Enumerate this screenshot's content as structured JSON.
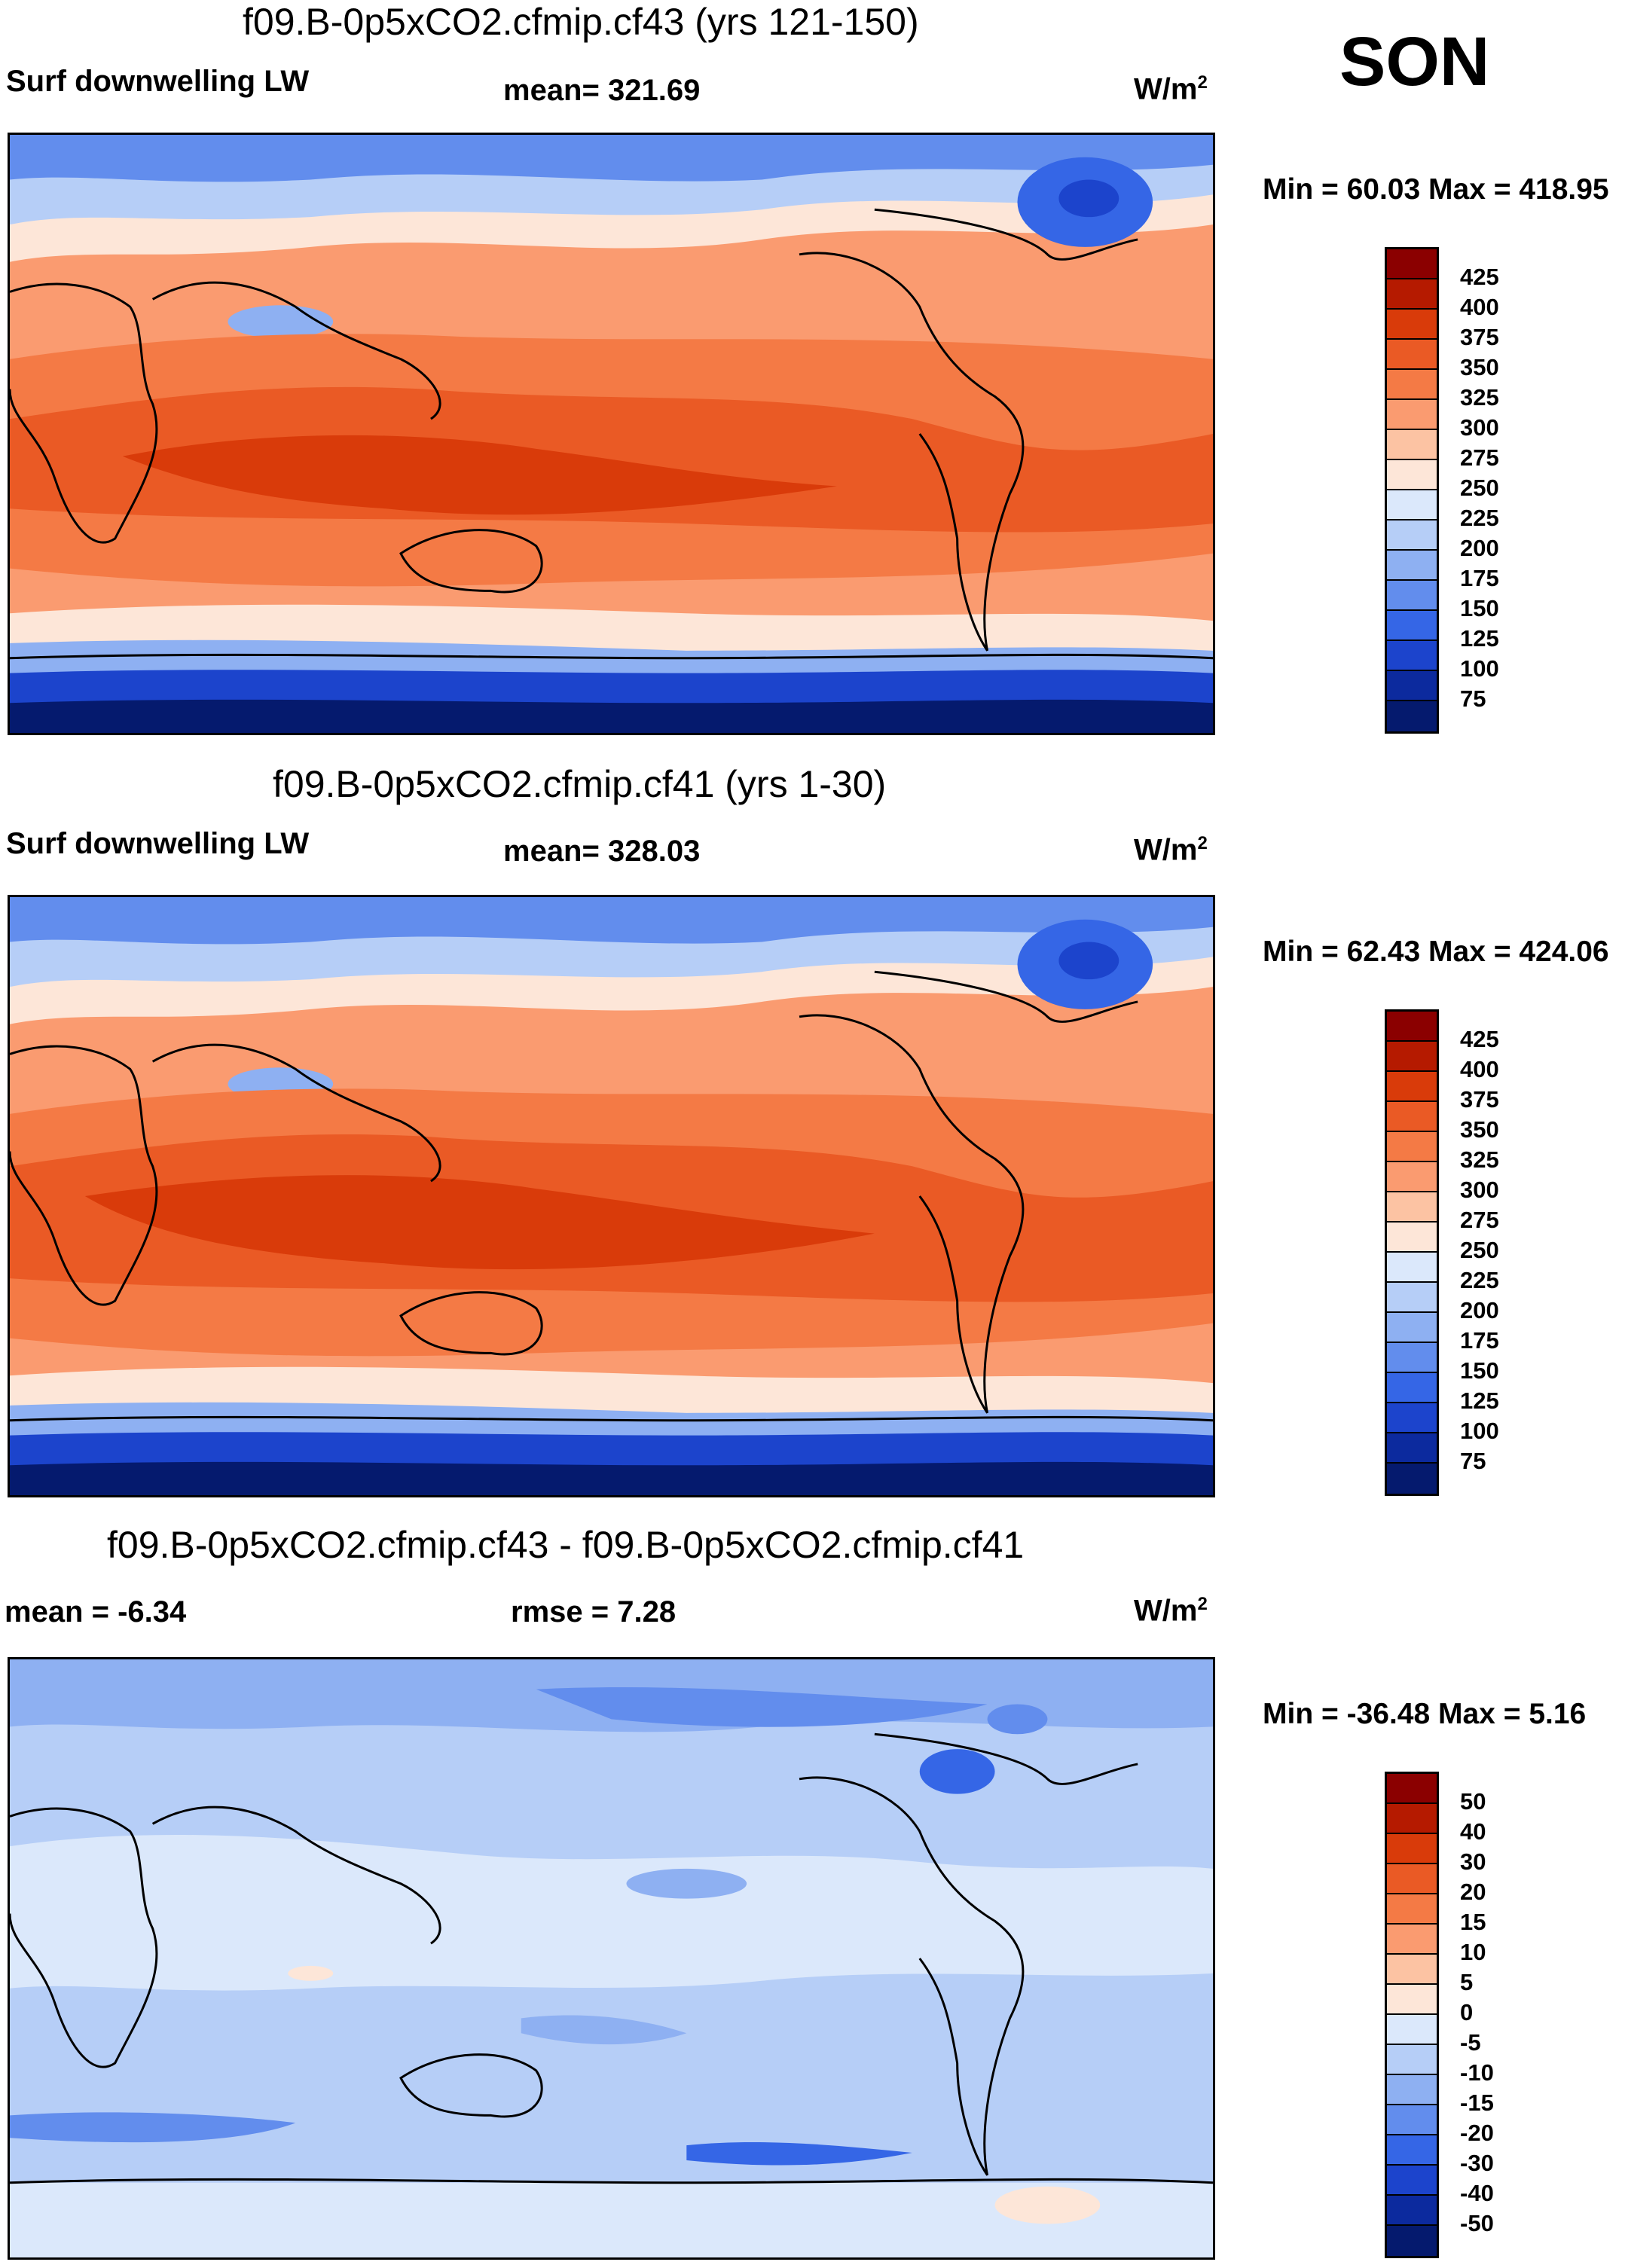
{
  "season": "SON",
  "panels": [
    {
      "title": "f09.B-0p5xCO2.cfmip.cf43 (yrs 121-150)",
      "left_label": "Surf downwelling LW",
      "center_label": "mean= 321.69",
      "units_base": "W/m",
      "units_exp": "2",
      "minmax": "Min =  60.03 Max = 418.95",
      "colorbar_levels": [
        "425",
        "400",
        "375",
        "350",
        "325",
        "300",
        "275",
        "250",
        "225",
        "200",
        "175",
        "150",
        "125",
        "100",
        "75"
      ],
      "colorbar_colors": [
        "#8b0000",
        "#b51a00",
        "#d93b0a",
        "#ea5a25",
        "#f47a45",
        "#fa9b70",
        "#fcc3a3",
        "#fde6d8",
        "#dbe8fb",
        "#b6cef7",
        "#8eb0f2",
        "#628ded",
        "#3566e6",
        "#1c44cc",
        "#0c2a9e",
        "#051a6e"
      ]
    },
    {
      "title": "f09.B-0p5xCO2.cfmip.cf41 (yrs 1-30)",
      "left_label": "Surf downwelling LW",
      "center_label": "mean= 328.03",
      "units_base": "W/m",
      "units_exp": "2",
      "minmax": "Min =  62.43 Max = 424.06",
      "colorbar_levels": [
        "425",
        "400",
        "375",
        "350",
        "325",
        "300",
        "275",
        "250",
        "225",
        "200",
        "175",
        "150",
        "125",
        "100",
        "75"
      ],
      "colorbar_colors": [
        "#8b0000",
        "#b51a00",
        "#d93b0a",
        "#ea5a25",
        "#f47a45",
        "#fa9b70",
        "#fcc3a3",
        "#fde6d8",
        "#dbe8fb",
        "#b6cef7",
        "#8eb0f2",
        "#628ded",
        "#3566e6",
        "#1c44cc",
        "#0c2a9e",
        "#051a6e"
      ]
    },
    {
      "title": "f09.B-0p5xCO2.cfmip.cf43 - f09.B-0p5xCO2.cfmip.cf41",
      "left_label": "mean =  -6.34",
      "center_label": "rmse =    7.28",
      "units_base": "W/m",
      "units_exp": "2",
      "minmax": "Min = -36.48 Max =   5.16",
      "colorbar_levels": [
        "50",
        "40",
        "30",
        "20",
        "15",
        "10",
        "5",
        "0",
        "-5",
        "-10",
        "-15",
        "-20",
        "-30",
        "-40",
        "-50"
      ],
      "colorbar_colors": [
        "#8b0000",
        "#b51a00",
        "#d93b0a",
        "#ea5a25",
        "#f47a45",
        "#fa9b70",
        "#fcc3a3",
        "#fde6d8",
        "#dbe8fb",
        "#b6cef7",
        "#8eb0f2",
        "#628ded",
        "#3566e6",
        "#1c44cc",
        "#0c2a9e",
        "#051a6e"
      ]
    }
  ]
}
